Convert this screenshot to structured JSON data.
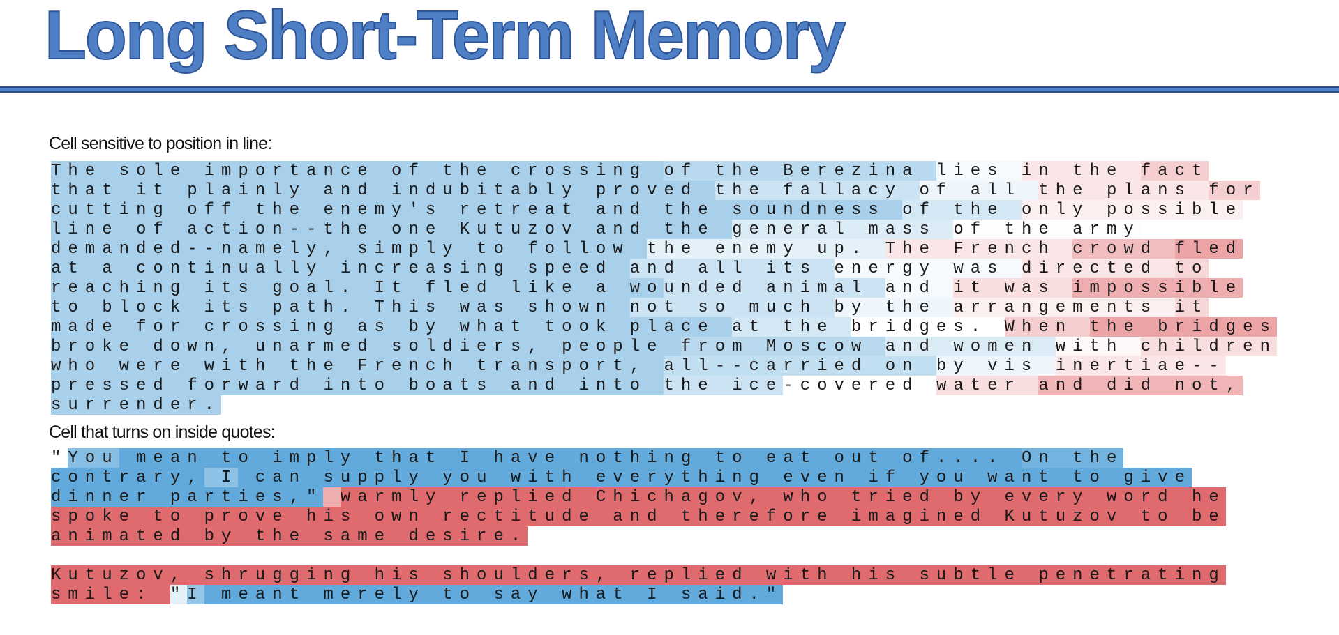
{
  "title": "Long Short-Term Memory",
  "colors": {
    "title": "#4f80c6",
    "negative": "#50a0d7",
    "positive": "#dc5a5f"
  },
  "section1": {
    "heading": "Cell sensitive to position in line:",
    "lines": [
      [
        [
          "The sole importance of the crossing ",
          -0.5
        ],
        [
          "of the Berezina ",
          -0.4
        ],
        [
          "lies ",
          -0.05
        ],
        [
          "in the ",
          0.15
        ],
        [
          "fact",
          0.3
        ]
      ],
      [
        [
          "that it plainly and indubitably proved ",
          -0.5
        ],
        [
          "the fallacy ",
          -0.3
        ],
        [
          "of all ",
          -0.1
        ],
        [
          "the plans ",
          0.15
        ],
        [
          "for",
          0.3
        ]
      ],
      [
        [
          "cutting off the enemy's retreat and the soundness ",
          -0.5
        ],
        [
          "of the ",
          -0.25
        ],
        [
          "only possible",
          0.1
        ]
      ],
      [
        [
          "line of action--the one Kutuzov and the ",
          -0.5
        ],
        [
          "general mass ",
          -0.2
        ],
        [
          "of the army",
          0.02
        ]
      ],
      [
        [
          "demanded--namely, simply to follow ",
          -0.5
        ],
        [
          "the enemy up. ",
          -0.15
        ],
        [
          "The French ",
          0.15
        ],
        [
          "crowd ",
          0.4
        ],
        [
          "fled",
          0.55
        ]
      ],
      [
        [
          "at a continually increasing speed ",
          -0.5
        ],
        [
          "and all its ",
          -0.3
        ],
        [
          "energy was ",
          -0.05
        ],
        [
          "directed ",
          0.15
        ],
        [
          "to",
          0.25
        ]
      ],
      [
        [
          "reaching its goal. It fled like a wo",
          -0.5
        ],
        [
          "unded animal ",
          -0.3
        ],
        [
          "and ",
          -0.05
        ],
        [
          "it was ",
          0.2
        ],
        [
          "impossible",
          0.5
        ]
      ],
      [
        [
          "to block its path. This was shown ",
          -0.5
        ],
        [
          "not so much ",
          -0.3
        ],
        [
          "by the ",
          -0.1
        ],
        [
          "arrangements ",
          0.1
        ],
        [
          "it",
          0.25
        ]
      ],
      [
        [
          "made for crossing as by what took place ",
          -0.5
        ],
        [
          "at the ",
          -0.25
        ],
        [
          "bridges. ",
          0.0
        ],
        [
          "When ",
          0.3
        ],
        [
          "the bridges",
          0.55
        ]
      ],
      [
        [
          "broke down, unarmed soldiers, people ",
          -0.5
        ],
        [
          "from Moscow ",
          -0.4
        ],
        [
          "and women ",
          -0.2
        ],
        [
          "with ",
          0.05
        ],
        [
          "children",
          0.2
        ]
      ],
      [
        [
          "who were with the French transport, ",
          -0.5
        ],
        [
          "all--carried on ",
          -0.35
        ],
        [
          "by vis ",
          -0.1
        ],
        [
          "inertiae--",
          0.15
        ]
      ],
      [
        [
          "pressed forward into boats and into ",
          -0.5
        ],
        [
          "the ice",
          -0.3
        ],
        [
          "-covered ",
          0.0
        ],
        [
          "water ",
          0.2
        ],
        [
          "and did not,",
          0.45
        ]
      ],
      [
        [
          "surrender.",
          -0.5
        ]
      ]
    ]
  },
  "section2": {
    "heading": "Cell that turns on inside quotes:",
    "lines": [
      [
        [
          "\"",
          0.0
        ],
        [
          "You",
          -0.7
        ],
        [
          " mean to imply that I have nothing to eat out of.... ",
          -0.9
        ],
        [
          "On the",
          -0.8
        ]
      ],
      [
        [
          "contrary,",
          -0.9
        ],
        [
          " I",
          -0.65
        ],
        [
          " can supply you with everything even if you want to give",
          -0.9
        ]
      ],
      [
        [
          "dinner parties,\"",
          -0.9
        ],
        [
          " ",
          0.5
        ],
        [
          "warmly replied Chichagov, who tried by every word he",
          0.9
        ]
      ],
      [
        [
          "spoke to prove his own rectitude and therefore imagined Kutuzov to be",
          0.9
        ]
      ],
      [
        [
          "animated by the same desire.",
          0.9
        ]
      ],
      [],
      [
        [
          "Kutuzov, shrugging his shoulders, replied with his subtle penetrating",
          0.9
        ]
      ],
      [
        [
          "smile: ",
          0.9
        ],
        [
          "\"",
          -0.15
        ],
        [
          "I",
          -0.6
        ],
        [
          " meant merely to say what I said.\"",
          -0.9
        ]
      ]
    ]
  }
}
